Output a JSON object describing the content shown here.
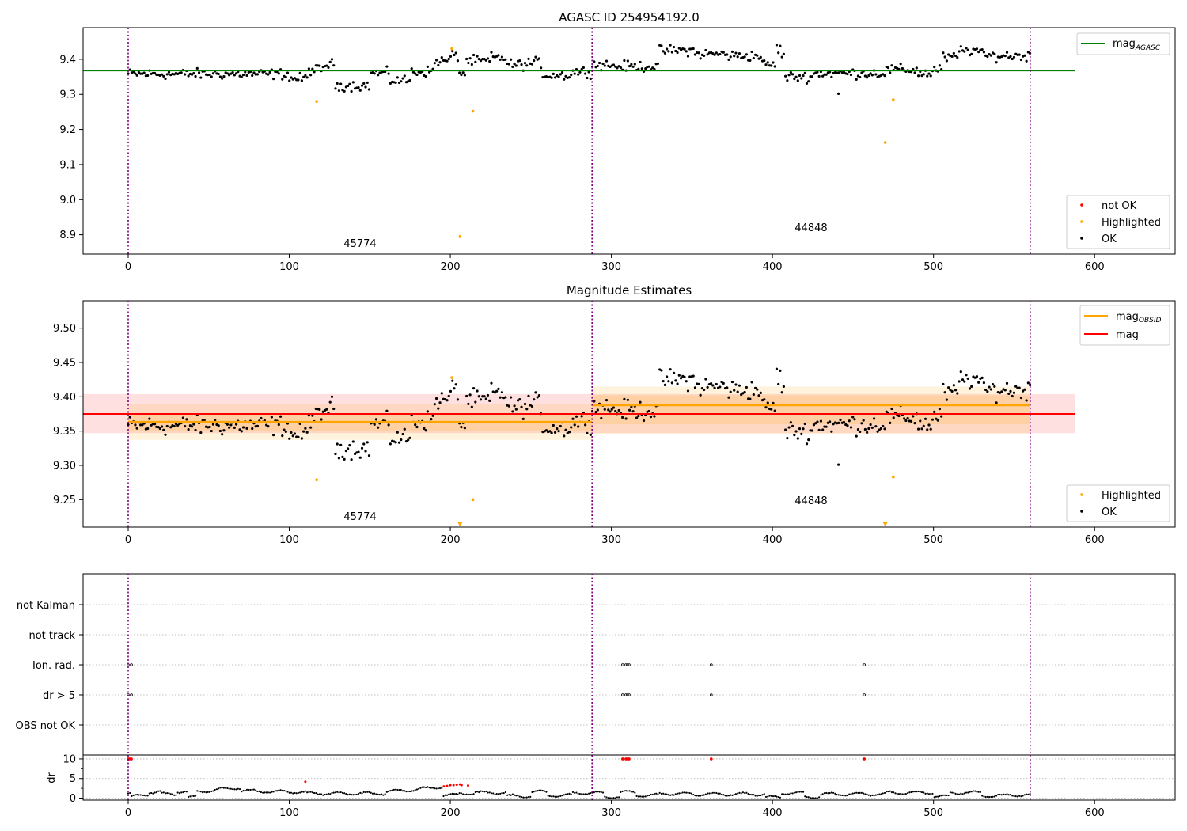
{
  "figure": {
    "panels": [
      "agasc",
      "estimates",
      "flags"
    ]
  },
  "chart_data": [
    {
      "type": "scatter",
      "id": "agasc",
      "title": "AGASC ID 254954192.0",
      "xlim": [
        -28,
        650
      ],
      "ylim": [
        8.845,
        9.49
      ],
      "xticks": [
        0,
        100,
        200,
        300,
        400,
        500,
        600
      ],
      "yticks": [
        8.9,
        9.0,
        9.1,
        9.2,
        9.3,
        9.4
      ],
      "ytick_labels": [
        "8.9",
        "9.0",
        "9.1",
        "9.2",
        "9.3",
        "9.4"
      ],
      "obs_boundaries": [
        0,
        288,
        560
      ],
      "obs_labels": [
        {
          "text": "45774",
          "x": 143,
          "y": 8.855
        },
        {
          "text": "44848",
          "x": 423,
          "y": 8.9
        }
      ],
      "mag_agasc": {
        "value": 9.368,
        "x_end": 588,
        "color": "#008000"
      },
      "legend_upper": {
        "items": [
          {
            "label": "mag",
            "sub": "AGASC",
            "color": "#008000"
          }
        ]
      },
      "legend_lower": {
        "items": [
          {
            "label": "not OK",
            "color": "#ff0000"
          },
          {
            "label": "Highlighted",
            "color": "#ffa500"
          },
          {
            "label": "OK",
            "color": "#000000"
          }
        ]
      },
      "highlighted_points": [
        {
          "x": 117,
          "y": 9.28
        },
        {
          "x": 201,
          "y": 9.43
        },
        {
          "x": 206,
          "y": 8.895
        },
        {
          "x": 214,
          "y": 9.252
        },
        {
          "x": 470,
          "y": 9.163
        },
        {
          "x": 475,
          "y": 9.285
        }
      ],
      "outlier_ok_points": [
        {
          "x": 441,
          "y": 9.302
        }
      ]
    },
    {
      "type": "scatter",
      "id": "estimates",
      "title": "Magnitude Estimates",
      "xlim": [
        -28,
        650
      ],
      "ylim": [
        9.21,
        9.54
      ],
      "xticks": [
        0,
        100,
        200,
        300,
        400,
        500,
        600
      ],
      "yticks": [
        9.25,
        9.3,
        9.35,
        9.4,
        9.45,
        9.5
      ],
      "ytick_labels": [
        "9.25",
        "9.30",
        "9.35",
        "9.40",
        "9.45",
        "9.50"
      ],
      "obs_boundaries": [
        0,
        288,
        560
      ],
      "obs_labels": [
        {
          "text": "45774",
          "x": 143,
          "y": 9.22
        },
        {
          "text": "44848",
          "x": 423,
          "y": 9.245
        }
      ],
      "mag": {
        "value": 9.375,
        "lo": 9.347,
        "hi": 9.404,
        "x_end": 588,
        "color": "#ff0000"
      },
      "mag_obsid": [
        {
          "x0": 0,
          "x1": 288,
          "value": 9.363,
          "lo1": 9.35,
          "hi1": 9.376,
          "lo2": 9.337,
          "hi2": 9.389
        },
        {
          "x0": 288,
          "x1": 560,
          "value": 9.388,
          "lo1": 9.36,
          "hi1": 9.402,
          "lo2": 9.345,
          "hi2": 9.415
        }
      ],
      "legend_upper": {
        "items": [
          {
            "label": "mag",
            "sub": "OBSID",
            "color": "#ffa500"
          },
          {
            "label": "mag",
            "sub": "",
            "color": "#ff0000"
          }
        ]
      },
      "legend_lower": {
        "items": [
          {
            "label": "Highlighted",
            "color": "#ffa500"
          },
          {
            "label": "OK",
            "color": "#000000"
          }
        ]
      },
      "highlighted_points": [
        {
          "x": 117,
          "y": 9.279
        },
        {
          "x": 201,
          "y": 9.428
        },
        {
          "x": 214,
          "y": 9.25
        },
        {
          "x": 475,
          "y": 9.283
        }
      ],
      "offscale_markers": [
        {
          "x": 206
        },
        {
          "x": 470
        }
      ],
      "outlier_ok_points": [
        {
          "x": 441,
          "y": 9.301
        }
      ]
    },
    {
      "type": "scatter",
      "id": "flags",
      "xlim": [
        -28,
        650
      ],
      "xticks": [
        0,
        100,
        200,
        300,
        400,
        500,
        600
      ],
      "obs_boundaries": [
        0,
        288,
        560
      ],
      "flag_rows": [
        "not Kalman",
        "not track",
        "Ion. rad.",
        "dr > 5",
        "OBS not OK"
      ],
      "flag_points": {
        "Ion. rad.": [
          0,
          2,
          307,
          309,
          310,
          311,
          362,
          457
        ],
        "dr > 5": [
          0,
          2,
          307,
          309,
          310,
          311,
          362,
          457
        ]
      },
      "dr": {
        "ylabel": "dr",
        "ylim": [
          -0.5,
          11
        ],
        "yticks": [
          0,
          5,
          10
        ],
        "ytick_labels": [
          "0",
          "5",
          "10"
        ],
        "red_points": [
          {
            "x": 110,
            "y": 4.2
          },
          {
            "x": 196,
            "y": 3.0
          },
          {
            "x": 198,
            "y": 3.1
          },
          {
            "x": 200,
            "y": 3.3
          },
          {
            "x": 202,
            "y": 3.3
          },
          {
            "x": 204,
            "y": 3.4
          },
          {
            "x": 206,
            "y": 3.5
          },
          {
            "x": 207,
            "y": 3.3
          },
          {
            "x": 211,
            "y": 3.2
          }
        ],
        "clipped_points": [
          0,
          1,
          2,
          307,
          309,
          310,
          311,
          362,
          457
        ]
      }
    }
  ]
}
